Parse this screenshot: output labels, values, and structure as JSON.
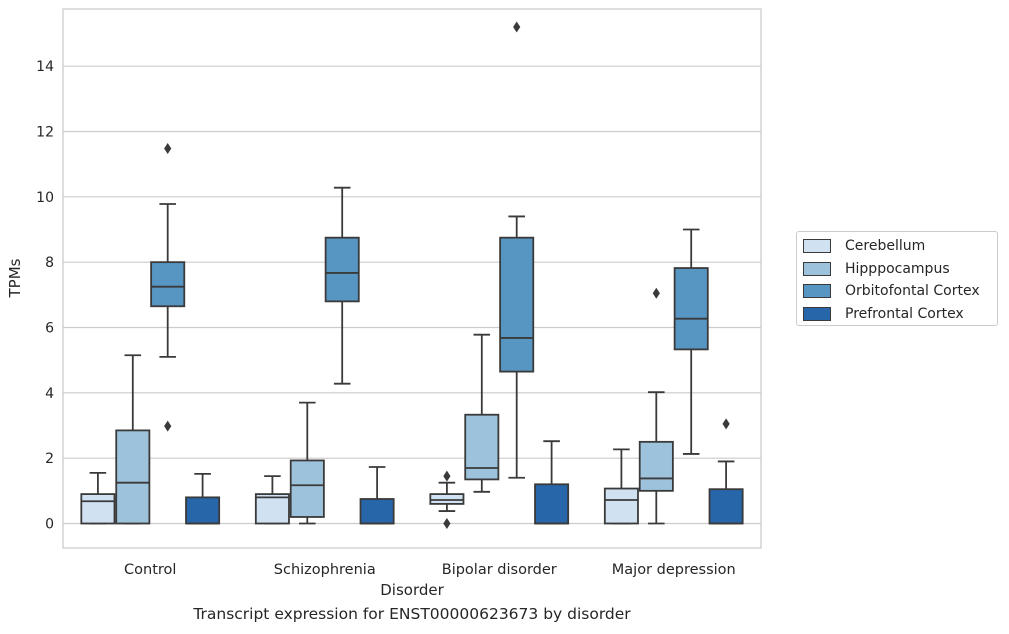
{
  "caption": "Transcript expression for ENST00000623673 by disorder",
  "chart_data": {
    "type": "box",
    "xlabel": "Disorder",
    "ylabel": "TPMs",
    "ylim": [
      -0.75,
      15.75
    ],
    "yticks": [
      0,
      2,
      4,
      6,
      8,
      10,
      12,
      14
    ],
    "categories": [
      "Control",
      "Schizophrenia",
      "Bipolar disorder",
      "Major depression"
    ],
    "grid": "horizontal",
    "legend_position": "right",
    "series": [
      {
        "name": "Cerebellum",
        "color": "#d0e1f2",
        "boxes": [
          {
            "whisker_low": 0.0,
            "q1": 0.0,
            "median": 0.68,
            "q3": 0.9,
            "whisker_high": 1.55,
            "outliers": []
          },
          {
            "whisker_low": 0.0,
            "q1": 0.0,
            "median": 0.8,
            "q3": 0.9,
            "whisker_high": 1.45,
            "outliers": []
          },
          {
            "whisker_low": 0.38,
            "q1": 0.6,
            "median": 0.72,
            "q3": 0.9,
            "whisker_high": 1.25,
            "outliers": [
              0.0,
              1.45
            ]
          },
          {
            "whisker_low": 0.0,
            "q1": 0.0,
            "median": 0.72,
            "q3": 1.07,
            "whisker_high": 2.27,
            "outliers": []
          }
        ]
      },
      {
        "name": "Hipppocampus",
        "color": "#9dc3dc",
        "boxes": [
          {
            "whisker_low": 0.0,
            "q1": 0.0,
            "median": 1.25,
            "q3": 2.85,
            "whisker_high": 5.15,
            "outliers": []
          },
          {
            "whisker_low": 0.0,
            "q1": 0.2,
            "median": 1.17,
            "q3": 1.93,
            "whisker_high": 3.7,
            "outliers": []
          },
          {
            "whisker_low": 0.97,
            "q1": 1.35,
            "median": 1.7,
            "q3": 3.33,
            "whisker_high": 5.78,
            "outliers": []
          },
          {
            "whisker_low": 0.0,
            "q1": 1.0,
            "median": 1.38,
            "q3": 2.5,
            "whisker_high": 4.02,
            "outliers": [
              7.05
            ]
          }
        ]
      },
      {
        "name": "Orbitofontal Cortex",
        "color": "#5795c3",
        "boxes": [
          {
            "whisker_low": 5.1,
            "q1": 6.65,
            "median": 7.25,
            "q3": 8.0,
            "whisker_high": 9.78,
            "outliers": [
              11.48,
              2.98
            ]
          },
          {
            "whisker_low": 4.28,
            "q1": 6.8,
            "median": 7.67,
            "q3": 8.75,
            "whisker_high": 10.28,
            "outliers": []
          },
          {
            "whisker_low": 1.4,
            "q1": 4.65,
            "median": 5.68,
            "q3": 8.75,
            "whisker_high": 9.4,
            "outliers": [
              15.2
            ]
          },
          {
            "whisker_low": 2.13,
            "q1": 5.33,
            "median": 6.27,
            "q3": 7.82,
            "whisker_high": 9.0,
            "outliers": []
          }
        ]
      },
      {
        "name": "Prefrontal Cortex",
        "color": "#2766a9",
        "boxes": [
          {
            "whisker_low": 0.0,
            "q1": 0.0,
            "median": 0.0,
            "q3": 0.8,
            "whisker_high": 1.52,
            "outliers": []
          },
          {
            "whisker_low": 0.0,
            "q1": 0.0,
            "median": 0.0,
            "q3": 0.75,
            "whisker_high": 1.73,
            "outliers": []
          },
          {
            "whisker_low": 0.0,
            "q1": 0.0,
            "median": 0.0,
            "q3": 1.2,
            "whisker_high": 2.52,
            "outliers": []
          },
          {
            "whisker_low": 0.0,
            "q1": 0.0,
            "median": 0.0,
            "q3": 1.05,
            "whisker_high": 1.9,
            "outliers": [
              3.05
            ]
          }
        ]
      }
    ]
  }
}
